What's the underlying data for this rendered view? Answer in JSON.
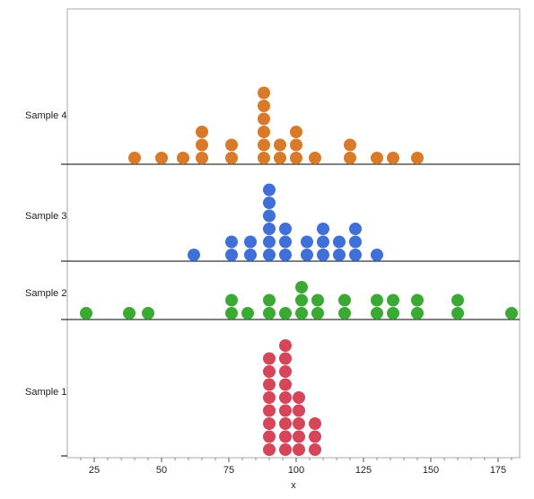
{
  "chart_data": {
    "type": "dot",
    "xlabel": "x",
    "ylabel": "",
    "title": "",
    "xlim": [
      15,
      183
    ],
    "xticks": [
      25,
      50,
      75,
      100,
      125,
      150,
      175
    ],
    "series": [
      {
        "name": "Sample 4",
        "color": "#d97a2a",
        "points": [
          [
            40,
            1
          ],
          [
            50,
            1
          ],
          [
            58,
            1
          ],
          [
            65,
            1
          ],
          [
            65,
            2
          ],
          [
            65,
            3
          ],
          [
            76,
            1
          ],
          [
            76,
            2
          ],
          [
            88,
            1
          ],
          [
            88,
            2
          ],
          [
            88,
            3
          ],
          [
            88,
            4
          ],
          [
            88,
            5
          ],
          [
            88,
            6
          ],
          [
            94,
            1
          ],
          [
            94,
            2
          ],
          [
            100,
            1
          ],
          [
            100,
            2
          ],
          [
            100,
            3
          ],
          [
            107,
            1
          ],
          [
            120,
            1
          ],
          [
            120,
            2
          ],
          [
            130,
            1
          ],
          [
            136,
            1
          ],
          [
            145,
            1
          ]
        ]
      },
      {
        "name": "Sample 3",
        "color": "#3f6fd8",
        "points": [
          [
            62,
            1
          ],
          [
            76,
            1
          ],
          [
            76,
            2
          ],
          [
            83,
            1
          ],
          [
            83,
            2
          ],
          [
            90,
            1
          ],
          [
            90,
            2
          ],
          [
            90,
            3
          ],
          [
            90,
            4
          ],
          [
            90,
            5
          ],
          [
            90,
            6
          ],
          [
            96,
            1
          ],
          [
            96,
            2
          ],
          [
            96,
            3
          ],
          [
            104,
            1
          ],
          [
            104,
            2
          ],
          [
            110,
            1
          ],
          [
            110,
            2
          ],
          [
            110,
            3
          ],
          [
            116,
            1
          ],
          [
            116,
            2
          ],
          [
            122,
            1
          ],
          [
            122,
            2
          ],
          [
            122,
            3
          ],
          [
            130,
            1
          ]
        ]
      },
      {
        "name": "Sample 2",
        "color": "#3aaa35",
        "points": [
          [
            22,
            1
          ],
          [
            38,
            1
          ],
          [
            45,
            1
          ],
          [
            76,
            1
          ],
          [
            76,
            2
          ],
          [
            82,
            1
          ],
          [
            90,
            1
          ],
          [
            90,
            2
          ],
          [
            96,
            1
          ],
          [
            102,
            1
          ],
          [
            102,
            2
          ],
          [
            102,
            3
          ],
          [
            108,
            1
          ],
          [
            108,
            2
          ],
          [
            118,
            1
          ],
          [
            118,
            2
          ],
          [
            130,
            1
          ],
          [
            130,
            2
          ],
          [
            136,
            1
          ],
          [
            136,
            2
          ],
          [
            145,
            1
          ],
          [
            145,
            2
          ],
          [
            160,
            1
          ],
          [
            160,
            2
          ],
          [
            180,
            1
          ]
        ]
      },
      {
        "name": "Sample 1",
        "color": "#d6455a",
        "points": [
          [
            90,
            1
          ],
          [
            90,
            2
          ],
          [
            90,
            3
          ],
          [
            90,
            4
          ],
          [
            90,
            5
          ],
          [
            90,
            6
          ],
          [
            90,
            7
          ],
          [
            90,
            8
          ],
          [
            96,
            1
          ],
          [
            96,
            2
          ],
          [
            96,
            3
          ],
          [
            96,
            4
          ],
          [
            96,
            5
          ],
          [
            96,
            6
          ],
          [
            96,
            7
          ],
          [
            96,
            8
          ],
          [
            96,
            9
          ],
          [
            101,
            1
          ],
          [
            101,
            2
          ],
          [
            101,
            3
          ],
          [
            101,
            4
          ],
          [
            101,
            5
          ],
          [
            107,
            1
          ],
          [
            107,
            2
          ],
          [
            107,
            3
          ]
        ]
      }
    ]
  }
}
